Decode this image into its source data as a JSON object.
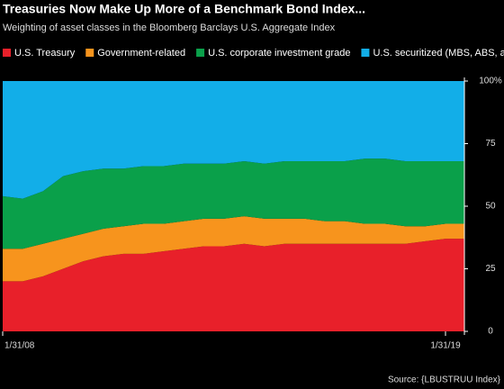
{
  "chart_data": {
    "type": "stacked_area",
    "title": "Treasuries Now Make Up More of a Benchmark Bond Index...",
    "subtitle": "Weighting of asset classes in the Bloomberg Barclays U.S. Aggregate Index",
    "source": "Source: {LBUSTRUU Index}",
    "categories": [
      "1/31/08",
      null,
      null,
      null,
      null,
      null,
      null,
      null,
      null,
      null,
      null,
      null,
      null,
      null,
      null,
      null,
      null,
      null,
      null,
      null,
      null,
      null,
      "1/31/19",
      null
    ],
    "series": [
      {
        "name": "U.S. Treasury",
        "color": "#e8202a",
        "values": [
          20,
          20,
          22,
          25,
          28,
          30,
          31,
          31,
          32,
          33,
          34,
          34,
          35,
          34,
          35,
          35,
          35,
          35,
          35,
          35,
          35,
          36,
          37,
          37
        ]
      },
      {
        "name": "Government-related",
        "color": "#f7941d",
        "values": [
          13,
          13,
          13,
          12,
          11,
          11,
          11,
          12,
          11,
          11,
          11,
          11,
          11,
          11,
          10,
          10,
          9,
          9,
          8,
          8,
          7,
          6,
          6,
          6
        ]
      },
      {
        "name": "U.S. corporate investment grade",
        "color": "#0aa04a",
        "values": [
          21,
          20,
          21,
          25,
          25,
          24,
          23,
          23,
          23,
          23,
          22,
          22,
          22,
          22,
          23,
          23,
          24,
          24,
          26,
          26,
          26,
          26,
          25,
          25
        ]
      },
      {
        "name": "U.S. securitized (MBS, ABS, and CMBS)",
        "color": "#12aee8",
        "values": [
          46,
          47,
          44,
          38,
          36,
          35,
          35,
          34,
          34,
          33,
          33,
          33,
          32,
          33,
          32,
          32,
          32,
          32,
          31,
          31,
          32,
          32,
          32,
          32
        ]
      }
    ],
    "ylim": [
      0,
      100
    ],
    "yticks": [
      0,
      25,
      50,
      75,
      {
        "value": 100,
        "label": "100%"
      }
    ]
  }
}
